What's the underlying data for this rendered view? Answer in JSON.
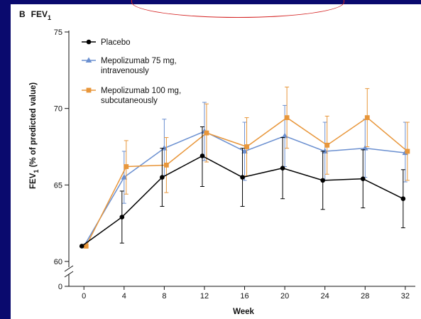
{
  "chart_data": {
    "type": "line",
    "panel_label": "B",
    "title": "FEV",
    "title_subscript": "1",
    "xlabel": "Week",
    "ylabel_main": "FEV",
    "ylabel_sub": "1",
    "ylabel_rest": " (% of predicted value)",
    "x": [
      0,
      4,
      8,
      12,
      16,
      20,
      24,
      28,
      32
    ],
    "x_ticks": [
      "0",
      "4",
      "8",
      "12",
      "16",
      "20",
      "24",
      "28",
      "32"
    ],
    "y_ticks": [
      "60",
      "65",
      "70",
      "75"
    ],
    "y_axis_origin_label": "0",
    "y_axis_break": true,
    "xlim": [
      -1.5,
      33
    ],
    "ylim": [
      60,
      75
    ],
    "grid": false,
    "legend_position": "top-left",
    "series": [
      {
        "name": "Placebo",
        "color": "#000000",
        "marker": "circle",
        "values": [
          61.0,
          62.9,
          65.5,
          66.9,
          65.5,
          66.1,
          65.3,
          65.4,
          64.1
        ],
        "lower": [
          61.0,
          61.2,
          63.6,
          64.9,
          63.6,
          64.1,
          63.4,
          63.5,
          62.2
        ],
        "upper": [
          61.0,
          64.6,
          67.4,
          68.8,
          67.4,
          68.1,
          67.2,
          67.3,
          66.0
        ]
      },
      {
        "name": "Mepolizumab 75 mg,",
        "name_line2": "intravenously",
        "color": "#6a8fd0",
        "marker": "triangle",
        "values": [
          61.0,
          65.5,
          67.4,
          68.5,
          67.2,
          68.2,
          67.2,
          67.4,
          67.1
        ],
        "lower": [
          61.0,
          63.8,
          65.6,
          66.6,
          65.3,
          66.2,
          65.3,
          65.5,
          65.2
        ],
        "upper": [
          61.0,
          67.2,
          69.3,
          70.4,
          69.1,
          70.2,
          69.1,
          69.3,
          69.1
        ]
      },
      {
        "name": "Mepolizumab 100 mg,",
        "name_line2": "subcutaneously",
        "color": "#e8963a",
        "marker": "square",
        "values": [
          61.0,
          66.2,
          66.3,
          68.4,
          67.5,
          69.4,
          67.6,
          69.4,
          67.2
        ],
        "lower": [
          61.0,
          64.4,
          64.5,
          66.5,
          65.6,
          67.4,
          65.7,
          67.5,
          65.3
        ],
        "upper": [
          61.0,
          67.9,
          68.1,
          70.3,
          69.4,
          71.4,
          69.5,
          71.3,
          69.1
        ]
      }
    ]
  }
}
